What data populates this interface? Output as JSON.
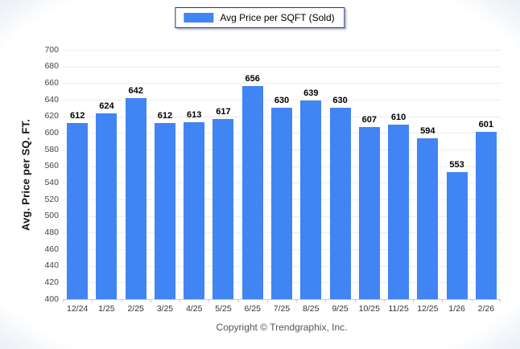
{
  "legend": {
    "label": "Avg Price per SQFT (Sold)"
  },
  "y_axis": {
    "title": "Avg. Price per SQ. FT."
  },
  "footer": {
    "copyright": "Copyright © Trendgraphix, Inc."
  },
  "colors": {
    "bar": "#4184F3",
    "legend_border": "#22356E",
    "gridline": "#ECECEC",
    "axis_line": "#C8C8C8",
    "value_label": "#000000",
    "tick_text": "#444444",
    "footer_text": "#555555"
  },
  "chart_data": {
    "type": "bar",
    "title": "",
    "xlabel": "",
    "ylabel": "Avg. Price per SQ. FT.",
    "categories": [
      "12/24",
      "1/25",
      "2/25",
      "3/25",
      "4/25",
      "5/25",
      "6/25",
      "7/25",
      "8/25",
      "9/25",
      "10/25",
      "11/25",
      "12/25",
      "1/26",
      "2/26"
    ],
    "series": [
      {
        "name": "Avg Price per SQFT (Sold)",
        "values": [
          612,
          624,
          642,
          612,
          613,
          617,
          656,
          630,
          639,
          630,
          607,
          610,
          594,
          553,
          601
        ]
      }
    ],
    "ylim": [
      400,
      700
    ],
    "ytick_step": 20,
    "grid": true,
    "legend_position": "top-center",
    "annotations": "value labels shown above each bar"
  }
}
